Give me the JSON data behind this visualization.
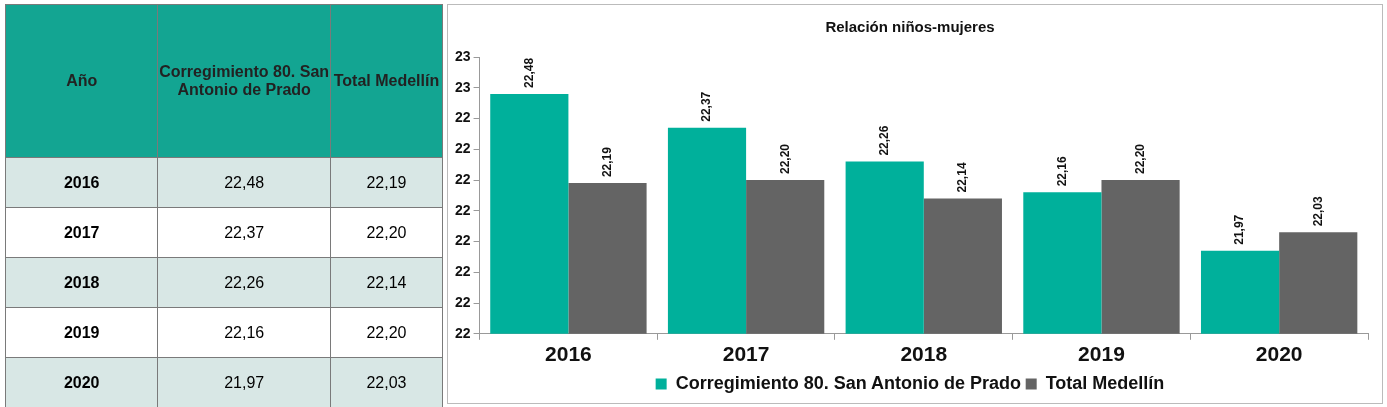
{
  "chart_data": {
    "type": "bar",
    "title": "Relación niños-mujeres",
    "annotations": [
      "Año"
    ],
    "categories": [
      "2016",
      "2017",
      "2018",
      "2019",
      "2020"
    ],
    "series": [
      {
        "name": "Corregimiento 80. San Antonio de Prado",
        "color": "#00b09b",
        "values": [
          22.48,
          22.37,
          22.26,
          22.16,
          21.97
        ],
        "value_labels": [
          "22,48",
          "22,37",
          "22,26",
          "22,16",
          "21,97"
        ]
      },
      {
        "name": "Total Medellín",
        "color": "#646464",
        "values": [
          22.19,
          22.2,
          22.14,
          22.2,
          22.03
        ],
        "value_labels": [
          "22,19",
          "22,20",
          "22,14",
          "22,20",
          "22,03"
        ]
      }
    ],
    "ylim": [
      21.7,
      22.6
    ],
    "yticks": [
      {
        "value": 21.7,
        "label": "22"
      },
      {
        "value": 21.8,
        "label": "22"
      },
      {
        "value": 21.9,
        "label": "22"
      },
      {
        "value": 22.0,
        "label": "22"
      },
      {
        "value": 22.1,
        "label": "22"
      },
      {
        "value": 22.2,
        "label": "22"
      },
      {
        "value": 22.3,
        "label": "22"
      },
      {
        "value": 22.4,
        "label": "22"
      },
      {
        "value": 22.5,
        "label": "23"
      },
      {
        "value": 22.6,
        "label": "23"
      }
    ],
    "grid": false,
    "legend": "bottom"
  }
}
